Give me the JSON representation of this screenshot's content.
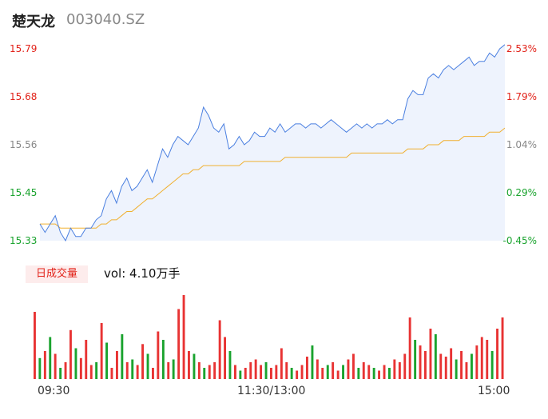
{
  "header": {
    "name": "楚天龙",
    "code": "003040.SZ"
  },
  "price_axis": {
    "labels": [
      "15.79",
      "15.68",
      "15.56",
      "15.45",
      "15.33"
    ],
    "pct_labels": [
      "2.53%",
      "1.79%",
      "1.04%",
      "0.29%",
      "-0.45%"
    ],
    "colors": [
      "#e2231a",
      "#e2231a",
      "#888888",
      "#1aa32e",
      "#1aa32e"
    ]
  },
  "volume": {
    "tab_label": "日成交量",
    "vol_text": "vol: 4.10万手"
  },
  "time_axis": {
    "labels": [
      "09:30",
      "11:30/13:00",
      "15:00"
    ]
  },
  "colors": {
    "price_line": "#4a7fe0",
    "avg_line": "#f0b030",
    "up": "#e83333",
    "down": "#1aa32e",
    "fill": "#eef3fd"
  },
  "chart_data": {
    "type": "line",
    "title": "",
    "xlabel": "",
    "ylabel": "",
    "ylim": [
      15.33,
      15.79
    ],
    "x_ticks": [
      "09:30",
      "11:30/13:00",
      "15:00"
    ],
    "series": [
      {
        "values": [
          15.37,
          15.35,
          15.37,
          15.39,
          15.35,
          15.33,
          15.36,
          15.34,
          15.34,
          15.36,
          15.36,
          15.38,
          15.39,
          15.43,
          15.45,
          15.42,
          15.46,
          15.48,
          15.45,
          15.46,
          15.48,
          15.5,
          15.47,
          15.51,
          15.55,
          15.53,
          15.56,
          15.58,
          15.57,
          15.56,
          15.58,
          15.6,
          15.65,
          15.63,
          15.6,
          15.59,
          15.61,
          15.55,
          15.56,
          15.58,
          15.56,
          15.57,
          15.59,
          15.58,
          15.58,
          15.6,
          15.59,
          15.61,
          15.59,
          15.6,
          15.61,
          15.61,
          15.6,
          15.61,
          15.61,
          15.6,
          15.61,
          15.62,
          15.61,
          15.6,
          15.59,
          15.6,
          15.61,
          15.6,
          15.61,
          15.6,
          15.61,
          15.61,
          15.62,
          15.61,
          15.62,
          15.62,
          15.67,
          15.69,
          15.68,
          15.68,
          15.72,
          15.73,
          15.72,
          15.74,
          15.75,
          15.74,
          15.75,
          15.76,
          15.77,
          15.75,
          15.76,
          15.76,
          15.78,
          15.77,
          15.79,
          15.8
        ],
        "avg": [
          15.37,
          15.37,
          15.37,
          15.37,
          15.36,
          15.36,
          15.36,
          15.36,
          15.36,
          15.36,
          15.36,
          15.36,
          15.37,
          15.37,
          15.38,
          15.38,
          15.39,
          15.4,
          15.4,
          15.41,
          15.42,
          15.43,
          15.43,
          15.44,
          15.45,
          15.46,
          15.47,
          15.48,
          15.49,
          15.49,
          15.5,
          15.5,
          15.51,
          15.51,
          15.51,
          15.51,
          15.51,
          15.51,
          15.51,
          15.51,
          15.52,
          15.52,
          15.52,
          15.52,
          15.52,
          15.52,
          15.52,
          15.52,
          15.53,
          15.53,
          15.53,
          15.53,
          15.53,
          15.53,
          15.53,
          15.53,
          15.53,
          15.53,
          15.53,
          15.53,
          15.53,
          15.54,
          15.54,
          15.54,
          15.54,
          15.54,
          15.54,
          15.54,
          15.54,
          15.54,
          15.54,
          15.54,
          15.55,
          15.55,
          15.55,
          15.55,
          15.56,
          15.56,
          15.56,
          15.57,
          15.57,
          15.57,
          15.57,
          15.58,
          15.58,
          15.58,
          15.58,
          15.58,
          15.59,
          15.59,
          15.59,
          15.6
        ]
      }
    ],
    "volumes": [
      48,
      15,
      20,
      30,
      18,
      8,
      12,
      35,
      22,
      15,
      28,
      10,
      12,
      40,
      26,
      8,
      20,
      32,
      12,
      14,
      10,
      25,
      18,
      8,
      34,
      28,
      12,
      14,
      50,
      60,
      20,
      18,
      12,
      8,
      10,
      12,
      42,
      30,
      20,
      10,
      6,
      8,
      12,
      14,
      10,
      12,
      8,
      10,
      22,
      12,
      8,
      6,
      10,
      16,
      24,
      14,
      8,
      10,
      12,
      6,
      10,
      14,
      18,
      8,
      12,
      10,
      8,
      6,
      10,
      8,
      14,
      12,
      18,
      44,
      28,
      24,
      20,
      36,
      32,
      18,
      16,
      22,
      14,
      20,
      12,
      18,
      24,
      30,
      28,
      20,
      36,
      44
    ],
    "volume_up": [
      true,
      false,
      true,
      false,
      true,
      false,
      true,
      true,
      false,
      true,
      true,
      true,
      false,
      true,
      false,
      true,
      true,
      false,
      true,
      false,
      true,
      true,
      false,
      true,
      true,
      false,
      true,
      false,
      true,
      true,
      true,
      false,
      true,
      false,
      true,
      true,
      true,
      true,
      false,
      true,
      false,
      true,
      true,
      true,
      true,
      false,
      true,
      true,
      true,
      true,
      false,
      true,
      true,
      true,
      false,
      true,
      true,
      false,
      true,
      true,
      false,
      true,
      true,
      false,
      true,
      true,
      false,
      true,
      true,
      false,
      true,
      true,
      true,
      true,
      false,
      true,
      true,
      true,
      false,
      true,
      true,
      true,
      false,
      true,
      true,
      false,
      true,
      true,
      true,
      false,
      true,
      true
    ]
  }
}
